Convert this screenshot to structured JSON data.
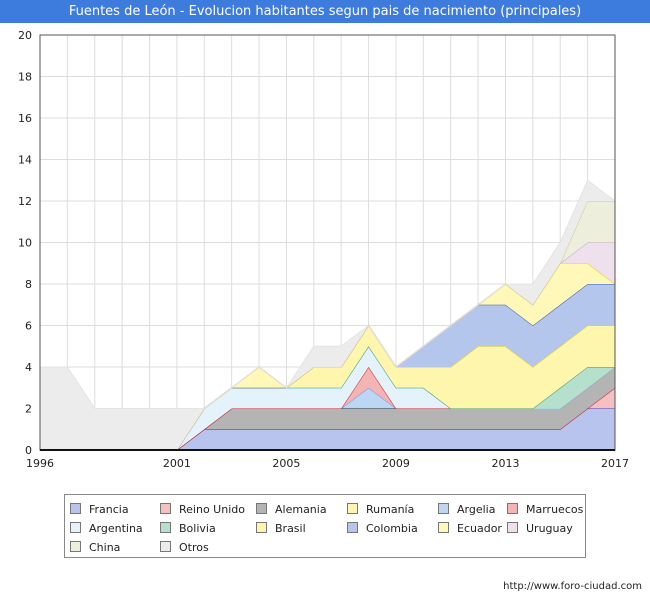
{
  "chart_data": {
    "type": "area",
    "title": "Fuentes de León - Evolucion habitantes segun pais de nacimiento (principales)",
    "xlabel": "",
    "ylabel": "",
    "xlim": [
      1996,
      2017
    ],
    "ylim": [
      0,
      20
    ],
    "x_ticks": [
      1996,
      2001,
      2005,
      2009,
      2013,
      2017
    ],
    "y_ticks": [
      0,
      2,
      4,
      6,
      8,
      10,
      12,
      14,
      16,
      18,
      20
    ],
    "grid": true,
    "legend_position": "bottom",
    "x": [
      1996,
      1997,
      1998,
      1999,
      2000,
      2001,
      2002,
      2003,
      2004,
      2005,
      2006,
      2007,
      2008,
      2009,
      2010,
      2011,
      2012,
      2013,
      2014,
      2015,
      2016,
      2017
    ],
    "series": [
      {
        "name": "Francia",
        "color": "#b9c4ee",
        "line": "#3c3cc8",
        "values": [
          0,
          0,
          0,
          0,
          0,
          0,
          1,
          1,
          1,
          1,
          1,
          1,
          1,
          1,
          1,
          1,
          1,
          1,
          1,
          1,
          2,
          2
        ]
      },
      {
        "name": "Reino Unido",
        "color": "#f4c0c0",
        "line": "#cc2222",
        "values": [
          0,
          0,
          0,
          0,
          0,
          0,
          0,
          0,
          0,
          0,
          0,
          0,
          0,
          0,
          0,
          0,
          0,
          0,
          0,
          0,
          0,
          1
        ]
      },
      {
        "name": "Alemania",
        "color": "#b4b4b4",
        "line": "#222222",
        "values": [
          0,
          0,
          0,
          0,
          0,
          0,
          0,
          1,
          1,
          1,
          1,
          1,
          1,
          1,
          1,
          1,
          1,
          1,
          1,
          1,
          1,
          1
        ]
      },
      {
        "name": "Rumanía",
        "color": "#fff4b4",
        "line": "#e6d21e",
        "values": [
          0,
          0,
          0,
          0,
          0,
          0,
          0,
          0,
          0,
          0,
          0,
          0,
          0,
          0,
          0,
          0,
          0,
          0,
          0,
          0,
          0,
          0
        ]
      },
      {
        "name": "Argelia",
        "color": "#bcd6f4",
        "line": "#6e9ed8",
        "values": [
          0,
          0,
          0,
          0,
          0,
          0,
          0,
          0,
          0,
          0,
          0,
          0,
          1,
          0,
          0,
          0,
          0,
          0,
          0,
          0,
          0,
          0
        ]
      },
      {
        "name": "Marruecos",
        "color": "#f4b4b4",
        "line": "#cc2222",
        "values": [
          0,
          0,
          0,
          0,
          0,
          0,
          0,
          0,
          0,
          0,
          0,
          0,
          1,
          0,
          0,
          0,
          0,
          0,
          0,
          0,
          0,
          0
        ]
      },
      {
        "name": "Argentina",
        "color": "#e4f2fc",
        "line": "#a4d2f0",
        "values": [
          0,
          0,
          0,
          0,
          0,
          0,
          1,
          1,
          1,
          1,
          1,
          1,
          1,
          1,
          1,
          0,
          0,
          0,
          0,
          0,
          0,
          0
        ]
      },
      {
        "name": "Bolivia",
        "color": "#b4e0cc",
        "line": "#3c9e78",
        "values": [
          0,
          0,
          0,
          0,
          0,
          0,
          0,
          0,
          0,
          0,
          0,
          0,
          0,
          0,
          0,
          0,
          0,
          0,
          0,
          1,
          1,
          0
        ]
      },
      {
        "name": "Brasil",
        "color": "#fff6ae",
        "line": "#e6d21e",
        "values": [
          0,
          0,
          0,
          0,
          0,
          0,
          0,
          0,
          0,
          0,
          1,
          1,
          1,
          1,
          1,
          2,
          3,
          3,
          2,
          2,
          2,
          2
        ]
      },
      {
        "name": "Colombia",
        "color": "#b4c6ec",
        "line": "#3c5cb4",
        "values": [
          0,
          0,
          0,
          0,
          0,
          0,
          0,
          0,
          0,
          0,
          0,
          0,
          0,
          0,
          1,
          2,
          2,
          2,
          2,
          2,
          2,
          2
        ]
      },
      {
        "name": "Ecuador",
        "color": "#fff8b8",
        "line": "#e6d21e",
        "values": [
          0,
          0,
          0,
          0,
          0,
          0,
          0,
          0,
          1,
          0,
          0,
          0,
          0,
          0,
          0,
          0,
          0,
          1,
          1,
          2,
          1,
          0
        ]
      },
      {
        "name": "Uruguay",
        "color": "#eee0ec",
        "line": "#c4a8c4",
        "values": [
          0,
          0,
          0,
          0,
          0,
          0,
          0,
          0,
          0,
          0,
          0,
          0,
          0,
          0,
          0,
          0,
          0,
          0,
          0,
          0,
          1,
          2
        ]
      },
      {
        "name": "China",
        "color": "#eeeedc",
        "line": "#cccc88",
        "values": [
          0,
          0,
          0,
          0,
          0,
          0,
          0,
          0,
          0,
          0,
          0,
          0,
          0,
          0,
          0,
          0,
          0,
          0,
          0,
          0,
          2,
          2
        ]
      },
      {
        "name": "Otros",
        "color": "#ececec",
        "line": "#e4e4e4",
        "values": [
          4,
          4,
          2,
          2,
          2,
          2,
          0,
          0,
          0,
          0,
          1,
          1,
          0,
          0,
          0,
          0,
          0,
          0,
          1,
          1,
          1,
          0
        ]
      }
    ]
  },
  "footer": {
    "source": "http://www.foro-ciudad.com"
  }
}
